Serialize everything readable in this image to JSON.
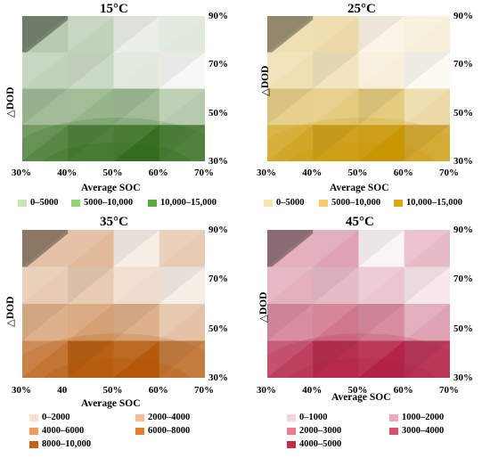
{
  "chart_data": [
    {
      "type": "heatmap",
      "title": "15°C",
      "xlabel": "Average SOC",
      "ylabel": "△DOD",
      "x_ticks": [
        "30%",
        "40%",
        "50%",
        "60%",
        "70%"
      ],
      "y_ticks": [
        "90%",
        "70%",
        "50%",
        "30%"
      ],
      "x_values": [
        30,
        40,
        50,
        60,
        70
      ],
      "y_values": [
        90,
        70,
        50,
        30
      ],
      "legend": [
        {
          "label": "0–5000",
          "color": "#c8e6b4"
        },
        {
          "label": "5000–10,000",
          "color": "#94d278"
        },
        {
          "label": "10,000–15,000",
          "color": "#5fa83c"
        }
      ],
      "levels": [
        [
          0.35,
          0.3,
          0.1,
          0.15
        ],
        [
          0.3,
          0.25,
          0.15,
          0.05
        ],
        [
          0.45,
          0.5,
          0.45,
          0.35
        ],
        [
          0.75,
          0.8,
          0.95,
          0.8
        ]
      ],
      "dark": "#2d6a16",
      "light": "#ffffff"
    },
    {
      "type": "heatmap",
      "title": "25°C",
      "xlabel": "Average SOC",
      "ylabel": "△DOD",
      "x_ticks": [
        "30%",
        "40%",
        "50%",
        "60%",
        "70%"
      ],
      "y_ticks": [
        "90%",
        "70%",
        "50%",
        "30%"
      ],
      "x_values": [
        30,
        40,
        50,
        60,
        70
      ],
      "y_values": [
        90,
        70,
        50,
        30
      ],
      "legend": [
        {
          "label": "0–5000",
          "color": "#fbe2ae"
        },
        {
          "label": "5000–10,000",
          "color": "#f5cc66"
        },
        {
          "label": "10,000–15,000",
          "color": "#dca614"
        }
      ],
      "levels": [
        [
          0.3,
          0.35,
          0.1,
          0.15
        ],
        [
          0.3,
          0.25,
          0.15,
          0.05
        ],
        [
          0.45,
          0.5,
          0.5,
          0.35
        ],
        [
          0.8,
          0.85,
          1.0,
          0.75
        ]
      ],
      "dark": "#c99600",
      "light": "#ffffff"
    },
    {
      "type": "heatmap",
      "title": "35°C",
      "xlabel": "Average SOC",
      "ylabel": "△DOD",
      "x_ticks": [
        "30%",
        "40",
        "50%",
        "60%",
        "70%"
      ],
      "y_ticks": [
        "90%",
        "70%",
        "50%",
        "30%"
      ],
      "x_values": [
        30,
        40,
        50,
        60,
        70
      ],
      "y_values": [
        90,
        70,
        50,
        30
      ],
      "legend": [
        {
          "label": "0–2000",
          "color": "#fde0cc"
        },
        {
          "label": "2000–4000",
          "color": "#f8bc92"
        },
        {
          "label": "4000–6000",
          "color": "#f29a5c"
        },
        {
          "label": "6000–8000",
          "color": "#e47c32"
        },
        {
          "label": "8000–10,000",
          "color": "#c85f14"
        }
      ],
      "levels": [
        [
          0.35,
          0.4,
          0.1,
          0.3
        ],
        [
          0.3,
          0.3,
          0.2,
          0.1
        ],
        [
          0.45,
          0.55,
          0.45,
          0.35
        ],
        [
          0.75,
          0.9,
          0.95,
          0.7
        ]
      ],
      "dark": "#b35200",
      "light": "#ffffff"
    },
    {
      "type": "heatmap",
      "title": "45°C",
      "xlabel": "Average SOC",
      "ylabel": "△DOD",
      "x_ticks": [
        "30%",
        "40%",
        "50%",
        "60%",
        "70%"
      ],
      "y_ticks": [
        "90%",
        "70%",
        "50%",
        "30%"
      ],
      "x_values": [
        30,
        40,
        50,
        60,
        70
      ],
      "y_values": [
        90,
        70,
        50,
        30
      ],
      "legend": [
        {
          "label": "0–1000",
          "color": "#fad4dc"
        },
        {
          "label": "1000–2000",
          "color": "#f2a8b6"
        },
        {
          "label": "2000–3000",
          "color": "#ea7c92"
        },
        {
          "label": "3000–4000",
          "color": "#dc4f6c"
        },
        {
          "label": "4000–5000",
          "color": "#c02c4c"
        }
      ],
      "levels": [
        [
          0.35,
          0.4,
          0.05,
          0.3
        ],
        [
          0.35,
          0.3,
          0.25,
          0.1
        ],
        [
          0.5,
          0.6,
          0.5,
          0.4
        ],
        [
          0.8,
          0.9,
          0.95,
          0.85
        ]
      ],
      "dark": "#b01c40",
      "light": "#ffffff"
    }
  ]
}
